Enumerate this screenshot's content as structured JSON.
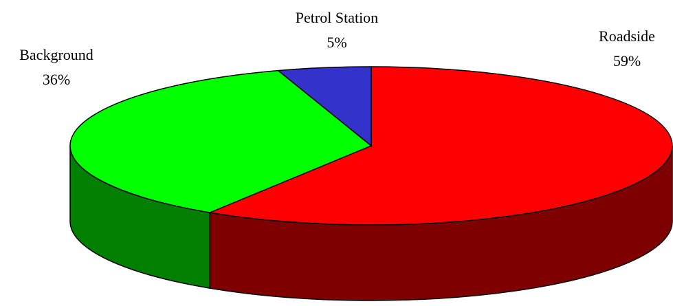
{
  "chart_data": {
    "type": "pie3d",
    "categories": [
      "Roadside",
      "Background",
      "Petrol Station"
    ],
    "values": [
      59,
      36,
      5
    ],
    "value_labels": [
      "59%",
      "36%",
      "5%"
    ],
    "colors": [
      "#ff0000",
      "#00ff00",
      "#3333cc"
    ]
  }
}
